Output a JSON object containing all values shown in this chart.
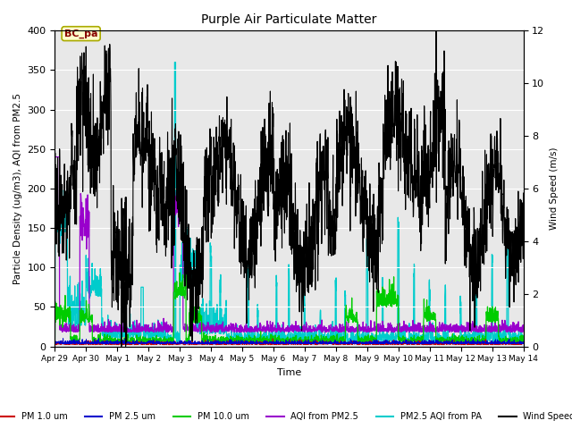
{
  "title": "Purple Air Particulate Matter",
  "ylabel_left": "Particle Density (ug/m3), AQI from PM2.5",
  "ylabel_right": "Wind Speed (m/s)",
  "xlabel": "Time",
  "ylim_left": [
    0,
    400
  ],
  "ylim_right": [
    0,
    12
  ],
  "yticks_left": [
    0,
    50,
    100,
    150,
    200,
    250,
    300,
    350,
    400
  ],
  "yticks_right": [
    0,
    2,
    4,
    6,
    8,
    10,
    12
  ],
  "bg_color": "#e8e8e8",
  "plot_bg_color": "#e8e8e8",
  "legend_labels": [
    "PM 1.0 um",
    "PM 2.5 um",
    "PM 10.0 um",
    "AQI from PM2.5",
    "PM2.5 AQI from PA",
    "Wind Speed"
  ],
  "legend_colors": [
    "#cc0000",
    "#0000cc",
    "#00cc00",
    "#9900cc",
    "#00cccc",
    "#000000"
  ],
  "tick_labels": [
    "Apr 29",
    "Apr 30",
    "May 1",
    "May 2",
    "May 3",
    "May 4",
    "May 5",
    "May 6",
    "May 7",
    "May 8",
    "May 9",
    "May 10",
    "May 11",
    "May 12",
    "May 13",
    "May 14"
  ],
  "annotation_text": "BC_pa",
  "figsize": [
    6.4,
    4.8
  ],
  "dpi": 100
}
